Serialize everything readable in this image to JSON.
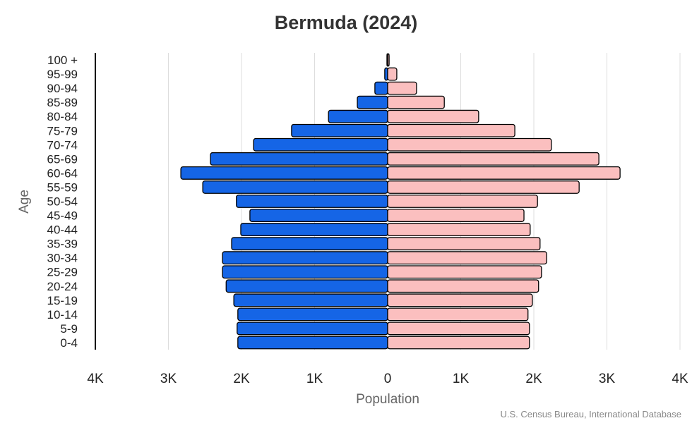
{
  "chart_data": {
    "type": "bar",
    "orientation": "horizontal",
    "subtype": "population-pyramid",
    "title": "Bermuda (2024)",
    "xlabel": "Population",
    "ylabel": "Age",
    "source": "U.S. Census Bureau, International Database",
    "categories": [
      "100 +",
      "95-99",
      "90-94",
      "85-89",
      "80-84",
      "75-79",
      "70-74",
      "65-69",
      "60-64",
      "55-59",
      "50-54",
      "45-49",
      "40-44",
      "35-39",
      "30-34",
      "25-29",
      "20-24",
      "15-19",
      "10-14",
      "5-9",
      "0-4"
    ],
    "series": [
      {
        "side": "left",
        "color": "#1565e6",
        "values": [
          10,
          40,
          175,
          415,
          810,
          1315,
          1835,
          2425,
          2830,
          2530,
          2070,
          1885,
          2010,
          2135,
          2260,
          2260,
          2210,
          2105,
          2050,
          2060,
          2050
        ]
      },
      {
        "side": "right",
        "color": "#fbbfbf",
        "values": [
          20,
          125,
          395,
          775,
          1245,
          1740,
          2240,
          2890,
          3180,
          2620,
          2050,
          1865,
          1950,
          2085,
          2175,
          2105,
          2065,
          1980,
          1920,
          1940,
          1940
        ]
      }
    ],
    "xlim": [
      -4000,
      4000
    ],
    "xticks": [
      -4000,
      -3000,
      -2000,
      -1000,
      0,
      1000,
      2000,
      3000,
      4000
    ],
    "xtick_labels": [
      "4K",
      "3K",
      "2K",
      "1K",
      "0",
      "1K",
      "2K",
      "3K",
      "4K"
    ],
    "grid": "vertical",
    "legend": "none"
  }
}
